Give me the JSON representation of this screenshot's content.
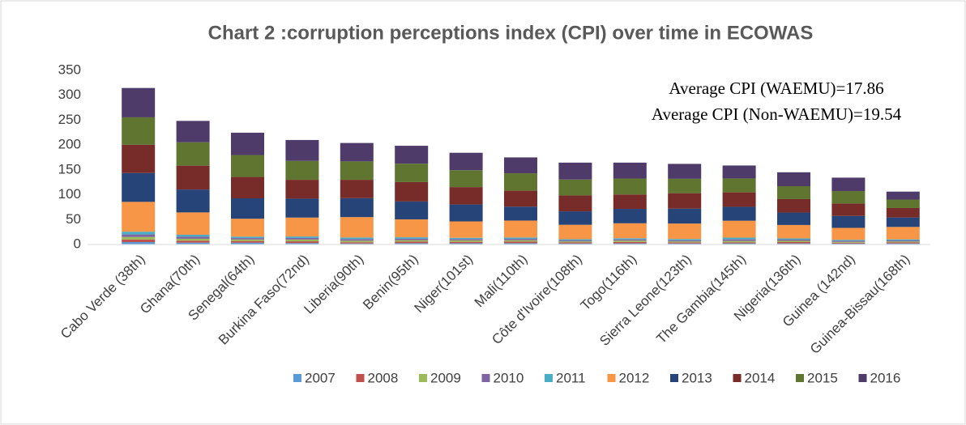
{
  "chart_data": {
    "type": "stacked_bar",
    "title": "Chart 2 :corruption perceptions index (CPI) over time in ECOWAS",
    "annotations": [
      "Average CPI (WAEMU)=17.86",
      "Average CPI (Non-WAEMU)=19.54"
    ],
    "categories": [
      "Cabo Verde (38th)",
      "Ghana(70th)",
      "Senegal(64th)",
      "Burkina Faso(72nd)",
      "Liberia(90th)",
      "Benin(95th)",
      "Niger(101st)",
      "Mali(110th)",
      "Côte d'Ivoire(108th)",
      "Togo(116th)",
      "Sierra Leone(123th)",
      "The Gambia(145th)",
      "Nigeria(136th)",
      "Guinea (142nd)",
      "Guinea-Bissau(168th)"
    ],
    "series": [
      {
        "name": "2007",
        "color": "#5b9bd5",
        "values": [
          4.9,
          3.7,
          3.6,
          2.9,
          2.1,
          2.7,
          2.6,
          2.7,
          2.1,
          2.3,
          2.1,
          2.3,
          2.2,
          1.9,
          2.2
        ]
      },
      {
        "name": "2008",
        "color": "#c0504d",
        "values": [
          5.1,
          3.9,
          3.4,
          3.5,
          2.4,
          3.1,
          2.8,
          3.1,
          2.0,
          2.7,
          1.9,
          1.9,
          2.7,
          1.6,
          1.9
        ]
      },
      {
        "name": "2009",
        "color": "#9bbb59",
        "values": [
          5.1,
          3.9,
          3.0,
          3.6,
          3.1,
          2.9,
          2.9,
          2.8,
          2.1,
          2.8,
          2.2,
          2.9,
          2.5,
          1.8,
          1.9
        ]
      },
      {
        "name": "2010",
        "color": "#8064a2",
        "values": [
          5.1,
          4.1,
          2.9,
          3.1,
          3.3,
          2.8,
          2.6,
          2.7,
          2.2,
          2.4,
          2.4,
          3.2,
          2.4,
          2.0,
          2.1
        ]
      },
      {
        "name": "2011",
        "color": "#4bacc6",
        "values": [
          5.5,
          3.9,
          2.9,
          3.0,
          3.2,
          3.0,
          2.5,
          2.8,
          2.2,
          2.4,
          2.5,
          3.5,
          2.4,
          2.1,
          2.2
        ]
      },
      {
        "name": "2012",
        "color": "#f79646",
        "values": [
          60,
          45,
          36,
          38,
          41,
          36,
          33,
          34,
          29,
          30,
          31,
          34,
          27,
          24,
          25
        ]
      },
      {
        "name": "2013",
        "color": "#264478",
        "values": [
          58,
          46,
          41,
          38,
          38,
          36,
          34,
          28,
          27,
          29,
          30,
          28,
          25,
          24,
          19
        ]
      },
      {
        "name": "2014",
        "color": "#772c2a",
        "values": [
          57,
          48,
          43,
          38,
          37,
          39,
          35,
          32,
          32,
          29,
          31,
          29,
          27,
          25,
          19
        ]
      },
      {
        "name": "2015",
        "color": "#5f7530",
        "values": [
          55,
          47,
          44,
          38,
          37,
          37,
          34,
          35,
          32,
          32,
          29,
          28,
          26,
          25,
          17
        ]
      },
      {
        "name": "2016",
        "color": "#4e3b6a",
        "values": [
          59,
          43,
          45,
          42,
          37,
          36,
          35,
          32,
          34,
          32,
          30,
          26,
          28,
          27,
          16
        ]
      }
    ],
    "ylim": [
      0,
      350
    ],
    "yticks": [
      0,
      50,
      100,
      150,
      200,
      250,
      300,
      350
    ],
    "grid": false,
    "legend": "bottom"
  }
}
